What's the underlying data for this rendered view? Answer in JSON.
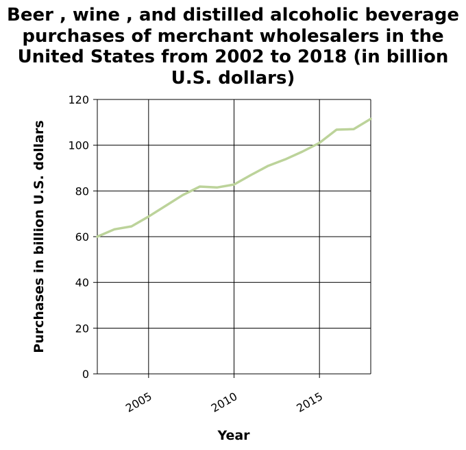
{
  "chart_data": {
    "type": "line",
    "title_lines": [
      "Beer , wine , and distilled alcoholic beverage",
      "purchases of merchant wholesalers in the",
      "United States from 2002 to 2018 (in billion",
      "U.S. dollars)"
    ],
    "xlabel": "Year",
    "ylabel": "Purchases in billion U.S. dollars",
    "xlim": [
      2002,
      2018
    ],
    "ylim": [
      0,
      120
    ],
    "x_ticks": [
      2005,
      2010,
      2015
    ],
    "y_ticks": [
      0,
      20,
      40,
      60,
      80,
      100,
      120
    ],
    "grid": true,
    "series": [
      {
        "x": [
          2002,
          2003,
          2004,
          2005,
          2006,
          2007,
          2008,
          2009,
          2010,
          2011,
          2012,
          2013,
          2014,
          2015,
          2016,
          2017,
          2018
        ],
        "values": [
          60,
          63.2,
          64.5,
          68.8,
          73.5,
          78.2,
          81.9,
          81.5,
          82.8,
          87,
          91,
          93.8,
          97.2,
          101,
          106.8,
          107,
          111.5
        ],
        "color": "#bcd39a"
      }
    ]
  }
}
